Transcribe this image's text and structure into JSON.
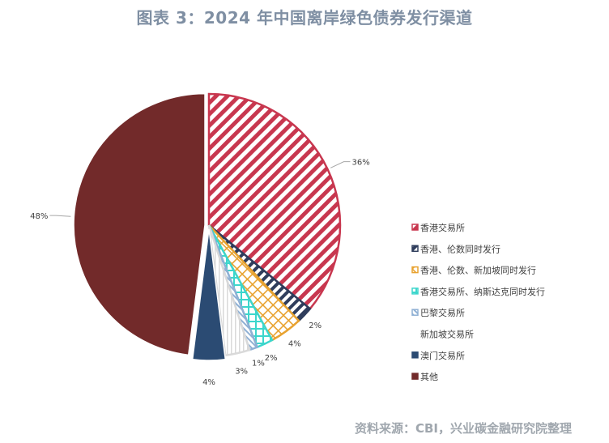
{
  "header": {
    "title": "图表 3：2024 年中国离岸绿色债券发行渠道"
  },
  "footer": {
    "source": "资料来源：CBI，兴业碳金融研究院整理"
  },
  "chart_data": {
    "type": "pie",
    "title": "图表 3：2024 年中国离岸绿色债券发行渠道",
    "legend_position": "right",
    "slices": [
      {
        "name": "香港交易所",
        "value": 36,
        "label": "36%",
        "color": "#c8374f",
        "pattern": "diagonal"
      },
      {
        "name": "香港、伦数同时发行",
        "value": 2,
        "label": "2%",
        "color": "#2f3d5c",
        "pattern": "diagonal"
      },
      {
        "name": "香港、伦数、新加坡同时发行",
        "value": 4,
        "label": "4%",
        "color": "#e8a22f",
        "pattern": "cross"
      },
      {
        "name": "香港交易所、纳斯达克同时发行",
        "value": 2,
        "label": "2%",
        "color": "#3cd6cc",
        "pattern": "grid"
      },
      {
        "name": "巴黎交易所",
        "value": 1,
        "label": "1%",
        "color": "#8fb0d4",
        "pattern": "diagonal-fine"
      },
      {
        "name": "新加坡交易所",
        "value": 3,
        "label": "3%",
        "color": "#d9d9d9",
        "pattern": "vertical"
      },
      {
        "name": "澳门交易所",
        "value": 4,
        "label": "4%",
        "color": "#2b4b73",
        "pattern": "solid"
      },
      {
        "name": "其他",
        "value": 48,
        "label": "48%",
        "color": "#722a2a",
        "pattern": "solid"
      }
    ]
  }
}
